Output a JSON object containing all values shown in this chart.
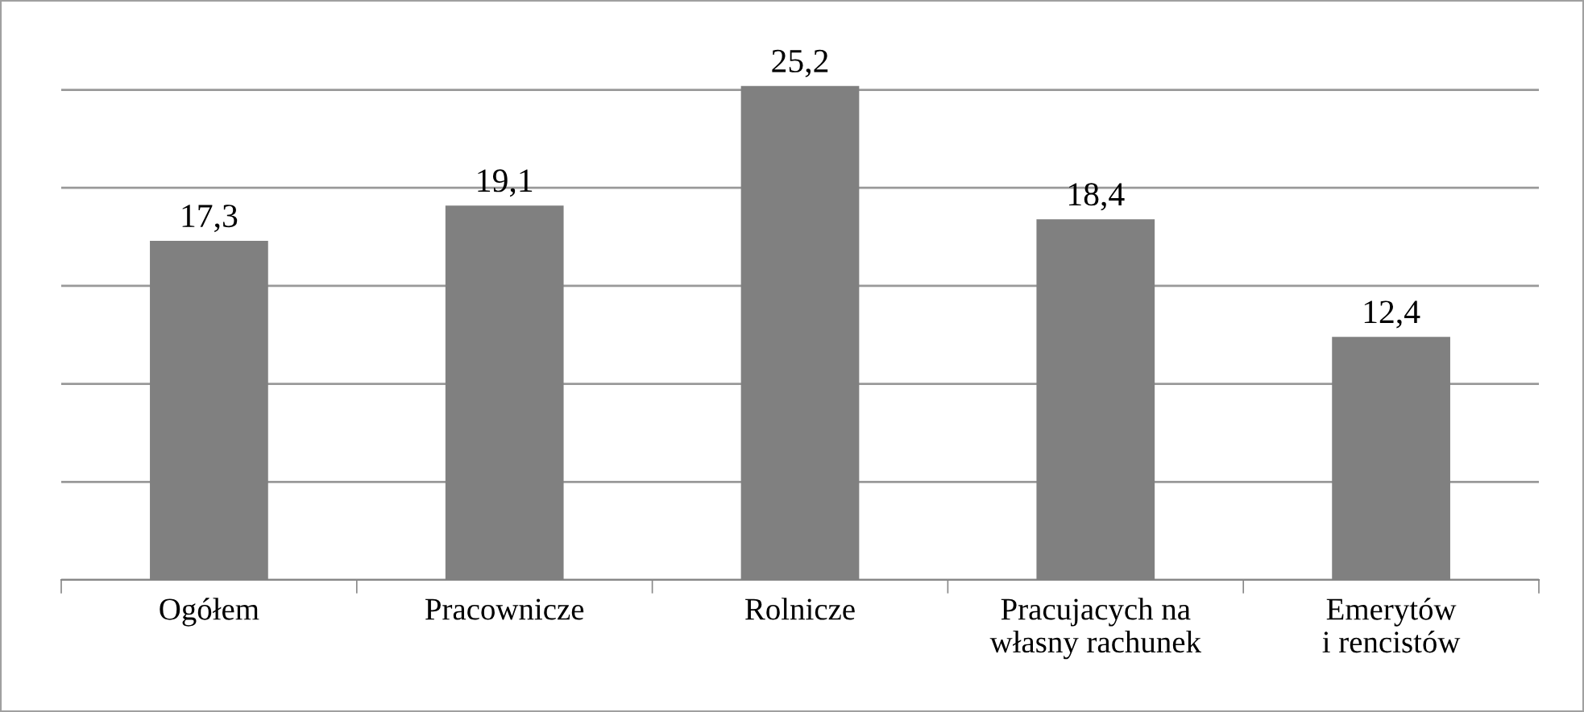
{
  "chart_data": {
    "type": "bar",
    "categories": [
      "Ogółem",
      "Pracownicze",
      "Rolnicze",
      "Pracujacych na\nwłasny rachunek",
      "Emerytów\ni rencistów"
    ],
    "values": [
      17.3,
      19.1,
      25.2,
      18.4,
      12.4
    ],
    "color": "#808080",
    "value_labels": [
      "17,3",
      "19,1",
      "25,2",
      "18,4",
      "12,4"
    ],
    "grid": "y",
    "tick_labels": "x"
  }
}
